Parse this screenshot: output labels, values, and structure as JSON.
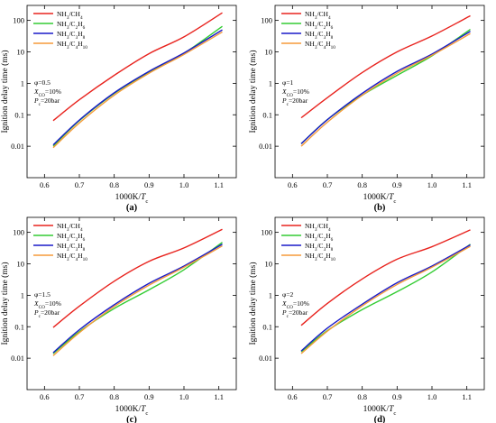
{
  "figure": {
    "panels": [
      "(a)",
      "(b)",
      "(c)",
      "(d)"
    ]
  },
  "series_colors": {
    "NH3/CH4": "#e8231e",
    "NH3/C2H6": "#33cc33",
    "NH3/C3H8": "#1a1ac8",
    "NH3/C4H10": "#f59a3a"
  },
  "chart_data": [
    {
      "type": "line",
      "panel_label": "(a)",
      "xlabel": "1000K/Tc",
      "ylabel": "Ignition delay time (ms)",
      "xlim": [
        0.55,
        1.15
      ],
      "ylim": [
        0.001,
        300
      ],
      "y_scale": "log",
      "x_ticks": [
        "0.6",
        "0.7",
        "0.8",
        "0.9",
        "1.0",
        "1.1"
      ],
      "y_ticks": [
        "0.01",
        "0.1",
        "1",
        "10",
        "100"
      ],
      "legend_position": "top-left",
      "annotations": [
        "φ=0.5",
        "XCO=10%",
        "Pc=20bar"
      ],
      "x": [
        0.625,
        0.7,
        0.8,
        0.9,
        1.0,
        1.11
      ],
      "series": [
        {
          "name": "NH3/CH4",
          "values": [
            0.065,
            0.3,
            1.8,
            8.8,
            30,
            175
          ]
        },
        {
          "name": "NH3/C2H6",
          "values": [
            0.01,
            0.065,
            0.48,
            2.3,
            9,
            65
          ]
        },
        {
          "name": "NH3/C3H8",
          "values": [
            0.011,
            0.068,
            0.5,
            2.4,
            9.2,
            50
          ]
        },
        {
          "name": "NH3/C4H10",
          "values": [
            0.009,
            0.055,
            0.42,
            2.1,
            8.3,
            43
          ]
        }
      ]
    },
    {
      "type": "line",
      "panel_label": "(b)",
      "xlabel": "1000K/Tc",
      "ylabel": "Ignition delay time (ms)",
      "xlim": [
        0.55,
        1.15
      ],
      "ylim": [
        0.001,
        300
      ],
      "y_scale": "log",
      "x_ticks": [
        "0.6",
        "0.7",
        "0.8",
        "0.9",
        "1.0",
        "1.1"
      ],
      "y_ticks": [
        "0.01",
        "0.1",
        "1",
        "10",
        "100"
      ],
      "legend_position": "top-left",
      "annotations": [
        "φ=1",
        "XCO=10%",
        "Pc=20bar"
      ],
      "x": [
        0.625,
        0.7,
        0.8,
        0.9,
        1.0,
        1.11
      ],
      "series": [
        {
          "name": "NH3/CH4",
          "values": [
            0.08,
            0.35,
            2.2,
            10,
            32,
            140
          ]
        },
        {
          "name": "NH3/C2H6",
          "values": [
            0.012,
            0.07,
            0.42,
            1.8,
            7.5,
            52
          ]
        },
        {
          "name": "NH3/C3H8",
          "values": [
            0.012,
            0.07,
            0.48,
            2.4,
            8.5,
            45
          ]
        },
        {
          "name": "NH3/C4H10",
          "values": [
            0.01,
            0.058,
            0.42,
            2.1,
            7.8,
            38
          ]
        }
      ]
    },
    {
      "type": "line",
      "panel_label": "(c)",
      "xlabel": "1000K/Tc",
      "ylabel": "Ignition delay time (ms)",
      "xlim": [
        0.55,
        1.15
      ],
      "ylim": [
        0.001,
        300
      ],
      "y_scale": "log",
      "x_ticks": [
        "0.6",
        "0.7",
        "0.8",
        "0.9",
        "1.0",
        "1.1"
      ],
      "y_ticks": [
        "0.01",
        "0.1",
        "1",
        "10",
        "100"
      ],
      "legend_position": "top-left",
      "annotations": [
        "φ=1.5",
        "XCO=10%",
        "Pc=20bar"
      ],
      "x": [
        0.625,
        0.7,
        0.8,
        0.9,
        1.0,
        1.11
      ],
      "series": [
        {
          "name": "NH3/CH4",
          "values": [
            0.095,
            0.45,
            2.8,
            12,
            32,
            125
          ]
        },
        {
          "name": "NH3/C2H6",
          "values": [
            0.014,
            0.07,
            0.38,
            1.5,
            6.5,
            48
          ]
        },
        {
          "name": "NH3/C3H8",
          "values": [
            0.015,
            0.08,
            0.5,
            2.4,
            8.5,
            42
          ]
        },
        {
          "name": "NH3/C4H10",
          "values": [
            0.012,
            0.065,
            0.44,
            2.1,
            7.8,
            37
          ]
        }
      ]
    },
    {
      "type": "line",
      "panel_label": "(d)",
      "xlabel": "1000K/Tc",
      "ylabel": "Ignition delay time (ms)",
      "xlim": [
        0.55,
        1.15
      ],
      "ylim": [
        0.001,
        300
      ],
      "y_scale": "log",
      "x_ticks": [
        "0.6",
        "0.7",
        "0.8",
        "0.9",
        "1.0",
        "1.1"
      ],
      "y_ticks": [
        "0.01",
        "0.1",
        "1",
        "10",
        "100"
      ],
      "legend_position": "top-left",
      "annotations": [
        "φ=2",
        "XCO=10%",
        "Pc=20bar"
      ],
      "x": [
        0.625,
        0.7,
        0.8,
        0.9,
        1.0,
        1.11
      ],
      "series": [
        {
          "name": "NH3/CH4",
          "values": [
            0.11,
            0.55,
            3.3,
            14,
            35,
            120
          ]
        },
        {
          "name": "NH3/C2H6",
          "values": [
            0.016,
            0.075,
            0.35,
            1.3,
            5.5,
            42
          ]
        },
        {
          "name": "NH3/C3H8",
          "values": [
            0.017,
            0.09,
            0.52,
            2.5,
            8.5,
            40
          ]
        },
        {
          "name": "NH3/C4H10",
          "values": [
            0.014,
            0.072,
            0.46,
            2.2,
            7.8,
            36
          ]
        }
      ]
    }
  ]
}
